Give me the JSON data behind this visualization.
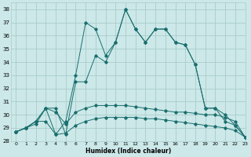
{
  "xlabel": "Humidex (Indice chaleur)",
  "background_color": "#cce8e8",
  "grid_color": "#aacccc",
  "line_color": "#1a6e6e",
  "xlim": [
    -0.5,
    23
  ],
  "ylim": [
    28,
    38.5
  ],
  "yticks": [
    28,
    29,
    30,
    31,
    32,
    33,
    34,
    35,
    36,
    37,
    38
  ],
  "xticks": [
    0,
    1,
    2,
    3,
    4,
    5,
    6,
    7,
    8,
    9,
    10,
    11,
    12,
    13,
    14,
    15,
    16,
    17,
    18,
    19,
    20,
    21,
    22,
    23
  ],
  "series": [
    [
      28.7,
      29.0,
      29.5,
      29.5,
      28.5,
      28.6,
      29.2,
      29.5,
      29.7,
      29.8,
      29.8,
      29.8,
      29.8,
      29.7,
      29.7,
      29.6,
      29.5,
      29.4,
      29.3,
      29.2,
      29.1,
      29.0,
      28.8,
      28.3
    ],
    [
      28.7,
      29.0,
      29.3,
      30.5,
      30.2,
      29.3,
      30.2,
      30.5,
      30.7,
      30.7,
      30.7,
      30.7,
      30.6,
      30.5,
      30.4,
      30.3,
      30.2,
      30.2,
      30.1,
      30.0,
      30.0,
      29.8,
      29.5,
      28.3
    ],
    [
      28.7,
      29.0,
      29.5,
      30.5,
      30.5,
      28.5,
      32.5,
      32.5,
      34.5,
      34.0,
      35.5,
      38.0,
      36.5,
      35.5,
      36.5,
      36.5,
      35.5,
      35.3,
      33.8,
      30.5,
      30.5,
      30.0,
      29.2,
      28.3
    ],
    [
      28.7,
      29.0,
      29.5,
      30.5,
      28.5,
      29.5,
      33.0,
      37.0,
      36.5,
      34.5,
      35.5,
      38.0,
      36.5,
      35.5,
      36.5,
      36.5,
      35.5,
      35.3,
      33.8,
      30.5,
      30.5,
      29.5,
      29.2,
      28.3
    ]
  ]
}
